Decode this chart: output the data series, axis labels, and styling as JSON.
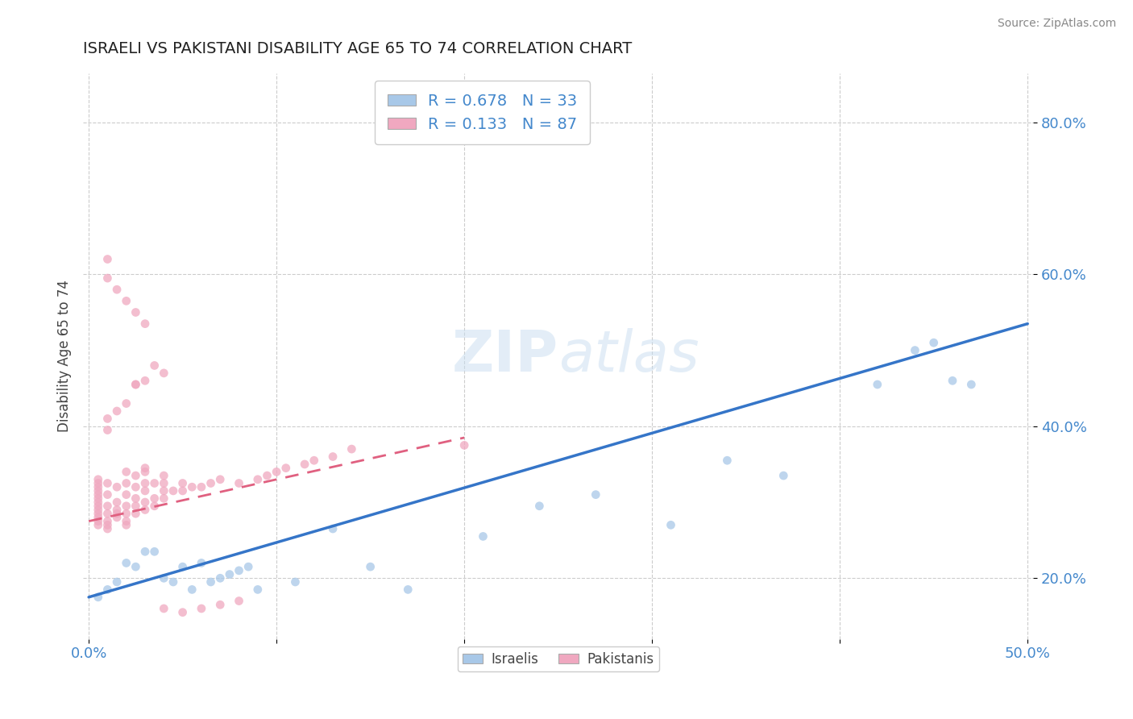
{
  "title": "ISRAELI VS PAKISTANI DISABILITY AGE 65 TO 74 CORRELATION CHART",
  "source": "Source: ZipAtlas.com",
  "ylabel": "Disability Age 65 to 74",
  "xlim": [
    -0.003,
    0.503
  ],
  "ylim": [
    0.12,
    0.865
  ],
  "x_ticks": [
    0.0,
    0.1,
    0.2,
    0.3,
    0.4,
    0.5
  ],
  "x_tick_labels": [
    "0.0%",
    "",
    "",
    "",
    "",
    "50.0%"
  ],
  "y_ticks": [
    0.2,
    0.4,
    0.6,
    0.8
  ],
  "y_tick_labels": [
    "20.0%",
    "40.0%",
    "60.0%",
    "80.0%"
  ],
  "israeli_color": "#a8c8e8",
  "pakistani_color": "#f0a8c0",
  "israeli_line_color": "#3575c8",
  "pakistani_line_color": "#e06080",
  "trendline_dash_color": "#c8a0a8",
  "R_israeli": 0.678,
  "N_israeli": 33,
  "R_pakistani": 0.133,
  "N_pakistani": 87,
  "watermark": "ZIPatlas",
  "israeli_x": [
    0.005,
    0.01,
    0.015,
    0.02,
    0.025,
    0.03,
    0.035,
    0.04,
    0.045,
    0.05,
    0.055,
    0.06,
    0.065,
    0.07,
    0.075,
    0.08,
    0.085,
    0.09,
    0.11,
    0.13,
    0.15,
    0.17,
    0.21,
    0.24,
    0.27,
    0.31,
    0.34,
    0.37,
    0.42,
    0.44,
    0.45,
    0.46,
    0.47
  ],
  "israeli_y": [
    0.175,
    0.185,
    0.195,
    0.22,
    0.215,
    0.235,
    0.235,
    0.2,
    0.195,
    0.215,
    0.185,
    0.22,
    0.195,
    0.2,
    0.205,
    0.21,
    0.215,
    0.185,
    0.195,
    0.265,
    0.215,
    0.185,
    0.255,
    0.295,
    0.31,
    0.27,
    0.355,
    0.335,
    0.455,
    0.5,
    0.51,
    0.46,
    0.455
  ],
  "pakistani_x": [
    0.005,
    0.005,
    0.005,
    0.005,
    0.005,
    0.005,
    0.005,
    0.005,
    0.005,
    0.005,
    0.005,
    0.005,
    0.005,
    0.01,
    0.01,
    0.01,
    0.01,
    0.01,
    0.01,
    0.01,
    0.015,
    0.015,
    0.015,
    0.015,
    0.015,
    0.02,
    0.02,
    0.02,
    0.02,
    0.02,
    0.02,
    0.02,
    0.025,
    0.025,
    0.025,
    0.025,
    0.025,
    0.03,
    0.03,
    0.03,
    0.03,
    0.03,
    0.035,
    0.035,
    0.035,
    0.04,
    0.04,
    0.04,
    0.04,
    0.045,
    0.05,
    0.05,
    0.055,
    0.06,
    0.065,
    0.07,
    0.08,
    0.09,
    0.095,
    0.1,
    0.105,
    0.115,
    0.12,
    0.13,
    0.14,
    0.2,
    0.03,
    0.01,
    0.01,
    0.015,
    0.02,
    0.025,
    0.03,
    0.04,
    0.05,
    0.06,
    0.07,
    0.08,
    0.025,
    0.03,
    0.04,
    0.035,
    0.025,
    0.02,
    0.015,
    0.01,
    0.01
  ],
  "pakistani_y": [
    0.27,
    0.275,
    0.28,
    0.285,
    0.29,
    0.295,
    0.3,
    0.305,
    0.31,
    0.315,
    0.32,
    0.325,
    0.33,
    0.265,
    0.27,
    0.275,
    0.285,
    0.295,
    0.31,
    0.325,
    0.28,
    0.285,
    0.29,
    0.3,
    0.32,
    0.27,
    0.275,
    0.285,
    0.295,
    0.31,
    0.325,
    0.34,
    0.285,
    0.295,
    0.305,
    0.32,
    0.335,
    0.29,
    0.3,
    0.315,
    0.325,
    0.34,
    0.295,
    0.305,
    0.325,
    0.305,
    0.315,
    0.325,
    0.335,
    0.315,
    0.315,
    0.325,
    0.32,
    0.32,
    0.325,
    0.33,
    0.325,
    0.33,
    0.335,
    0.34,
    0.345,
    0.35,
    0.355,
    0.36,
    0.37,
    0.375,
    0.345,
    0.62,
    0.595,
    0.58,
    0.565,
    0.55,
    0.535,
    0.16,
    0.155,
    0.16,
    0.165,
    0.17,
    0.455,
    0.46,
    0.47,
    0.48,
    0.455,
    0.43,
    0.42,
    0.41,
    0.395
  ],
  "isr_trend_x0": 0.0,
  "isr_trend_y0": 0.175,
  "isr_trend_x1": 0.5,
  "isr_trend_y1": 0.535,
  "pak_trend_x0": 0.0,
  "pak_trend_y0": 0.275,
  "pak_trend_x1": 0.2,
  "pak_trend_y1": 0.385
}
